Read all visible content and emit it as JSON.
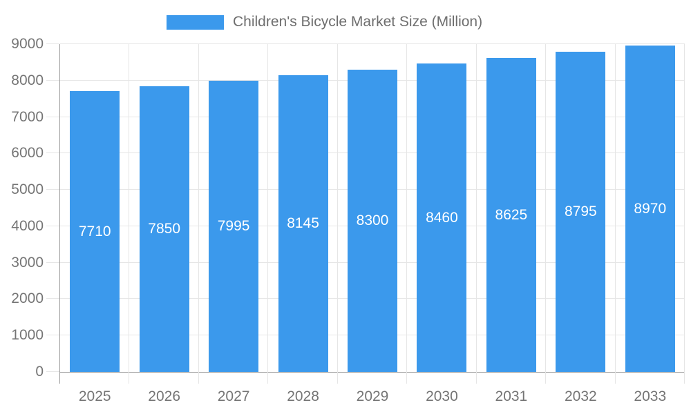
{
  "legend": {
    "label": "Children's Bicycle Market Size (Million)"
  },
  "chart_data": {
    "type": "bar",
    "title": "Children's Bicycle Market Size (Million)",
    "categories": [
      "2025",
      "2026",
      "2027",
      "2028",
      "2029",
      "2030",
      "2031",
      "2032",
      "2033"
    ],
    "values": [
      7710,
      7850,
      7995,
      8145,
      8300,
      8460,
      8625,
      8795,
      8970
    ],
    "xlabel": "",
    "ylabel": "",
    "ylim": [
      0,
      9000
    ],
    "ytick_step": 1000,
    "grid": true,
    "legend_position": "top",
    "bar_labels_inside": true,
    "colors": {
      "bar": "#3b99ec",
      "bar_label": "#ffffff",
      "axis_text": "#757575",
      "legend_text": "#6e6e6e",
      "gridline": "#e6e6e6",
      "axis_line": "#9e9e9e"
    }
  }
}
